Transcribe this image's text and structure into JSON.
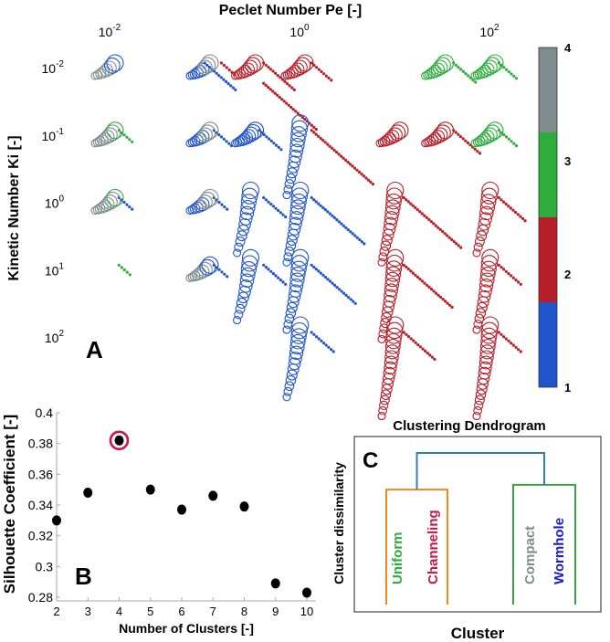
{
  "chart_data": [
    {
      "panel": "A",
      "type": "scatter",
      "title": "Peclet Number Pe [-]",
      "ylabel": "Kinetic Number Ki [-]",
      "x_scale": "log",
      "y_scale": "log",
      "y_inverted": true,
      "x_ticks": [
        {
          "value": 0.01,
          "base": "10",
          "exp": "-2"
        },
        {
          "value": 1,
          "base": "10",
          "exp": "0"
        },
        {
          "value": 100,
          "base": "10",
          "exp": "2"
        }
      ],
      "y_ticks": [
        {
          "value": 0.01,
          "base": "10",
          "exp": "-2"
        },
        {
          "value": 0.1,
          "base": "10",
          "exp": "-1"
        },
        {
          "value": 1,
          "base": "10",
          "exp": "0"
        },
        {
          "value": 10,
          "base": "10",
          "exp": "1"
        },
        {
          "value": 100,
          "base": "10",
          "exp": "2"
        }
      ],
      "colorbar": {
        "ticks": [
          "1",
          "2",
          "3",
          "4"
        ],
        "colors": [
          "#2255cc",
          "#b81e2a",
          "#2cad3c",
          "#7f8c8d"
        ]
      },
      "color_key": {
        "1": "#2255cc",
        "2": "#b81e2a",
        "3": "#2cad3c",
        "4": "#7f8c8d"
      },
      "trajectories": [
        {
          "pe": 0.01,
          "ki": 0.01,
          "cluster": 4,
          "style": "circles",
          "n": 8,
          "mix": 1
        },
        {
          "pe": 0.01,
          "ki": 0.1,
          "cluster": 4,
          "style": "circles",
          "n": 9,
          "mix": 3
        },
        {
          "pe": 0.01,
          "ki": 1,
          "cluster": 4,
          "style": "circles",
          "n": 9,
          "mix": 3
        },
        {
          "pe": 0.1,
          "ki": 0.01,
          "cluster": 1,
          "style": "circles",
          "n": 9,
          "mix": 4
        },
        {
          "pe": 0.1,
          "ki": 0.1,
          "cluster": 1,
          "style": "circles",
          "n": 9,
          "mix": 4
        },
        {
          "pe": 0.1,
          "ki": 1,
          "cluster": 1,
          "style": "circles",
          "n": 9,
          "mix": 4
        },
        {
          "pe": 0.1,
          "ki": 10,
          "cluster": 4,
          "style": "circles",
          "n": 9,
          "mix": 1
        },
        {
          "pe": 0.3,
          "ki": 0.01,
          "cluster": 2,
          "style": "circles",
          "n": 9
        },
        {
          "pe": 0.3,
          "ki": 0.1,
          "cluster": 1,
          "style": "circles",
          "n": 10
        },
        {
          "pe": 0.3,
          "ki": 1,
          "cluster": 1,
          "style": "circles",
          "n": 12
        },
        {
          "pe": 0.3,
          "ki": 10,
          "cluster": 1,
          "style": "circles",
          "n": 12
        },
        {
          "pe": 1,
          "ki": 0.01,
          "cluster": 2,
          "style": "circles",
          "n": 9
        },
        {
          "pe": 1,
          "ki": 0.1,
          "cluster": 1,
          "style": "circles",
          "n": 14
        },
        {
          "pe": 1,
          "ki": 1,
          "cluster": 1,
          "style": "circles",
          "n": 14
        },
        {
          "pe": 1,
          "ki": 10,
          "cluster": 1,
          "style": "circles",
          "n": 14
        },
        {
          "pe": 1,
          "ki": 100,
          "cluster": 1,
          "style": "circles",
          "n": 14
        },
        {
          "pe": 10,
          "ki": 0.1,
          "cluster": 2,
          "style": "circles",
          "n": 9
        },
        {
          "pe": 10,
          "ki": 1,
          "cluster": 2,
          "style": "circles",
          "n": 14
        },
        {
          "pe": 10,
          "ki": 10,
          "cluster": 2,
          "style": "circles",
          "n": 16
        },
        {
          "pe": 10,
          "ki": 100,
          "cluster": 2,
          "style": "circles",
          "n": 18
        },
        {
          "pe": 30,
          "ki": 0.01,
          "cluster": 3,
          "style": "circles",
          "n": 9
        },
        {
          "pe": 30,
          "ki": 0.1,
          "cluster": 2,
          "style": "circles",
          "n": 9
        },
        {
          "pe": 100,
          "ki": 0.01,
          "cluster": 3,
          "style": "circles",
          "n": 9
        },
        {
          "pe": 100,
          "ki": 0.1,
          "cluster": 3,
          "style": "circles",
          "n": 9
        },
        {
          "pe": 100,
          "ki": 1,
          "cluster": 2,
          "style": "circles",
          "n": 12
        },
        {
          "pe": 100,
          "ki": 10,
          "cluster": 2,
          "style": "circles",
          "n": 14
        },
        {
          "pe": 100,
          "ki": 100,
          "cluster": 2,
          "style": "circles",
          "n": 18
        },
        {
          "pe": 0.18,
          "ki": 0.01,
          "cluster": 2,
          "style": "dots",
          "n": 6
        },
        {
          "pe": 0.5,
          "ki": 0.01,
          "cluster": 2,
          "style": "dots",
          "n": 14
        },
        {
          "pe": 1.6,
          "ki": 0.01,
          "cluster": 2,
          "style": "dots",
          "n": 9
        },
        {
          "pe": 50,
          "ki": 0.01,
          "cluster": 3,
          "style": "dots",
          "n": 10
        },
        {
          "pe": 150,
          "ki": 0.01,
          "cluster": 3,
          "style": "dots",
          "n": 8
        },
        {
          "pe": 0.12,
          "ki": 0.01,
          "cluster": 1,
          "style": "dots",
          "n": 14
        },
        {
          "pe": 0.5,
          "ki": 0.02,
          "cluster": 2,
          "style": "dots",
          "n": 24
        },
        {
          "pe": 0.15,
          "ki": 0.1,
          "cluster": 1,
          "style": "dots",
          "n": 8
        },
        {
          "pe": 0.45,
          "ki": 0.1,
          "cluster": 1,
          "style": "dots",
          "n": 10
        },
        {
          "pe": 1.6,
          "ki": 0.1,
          "cluster": 2,
          "style": "dots",
          "n": 28
        },
        {
          "pe": 50,
          "ki": 0.1,
          "cluster": 2,
          "style": "dots",
          "n": 12
        },
        {
          "pe": 150,
          "ki": 0.1,
          "cluster": 3,
          "style": "dots",
          "n": 8
        },
        {
          "pe": 0.015,
          "ki": 0.1,
          "cluster": 3,
          "style": "dots",
          "n": 6
        },
        {
          "pe": 0.015,
          "ki": 1,
          "cluster": 1,
          "style": "dots",
          "n": 6
        },
        {
          "pe": 0.15,
          "ki": 1,
          "cluster": 1,
          "style": "dots",
          "n": 6
        },
        {
          "pe": 0.5,
          "ki": 1,
          "cluster": 1,
          "style": "dots",
          "n": 10
        },
        {
          "pe": 1.6,
          "ki": 1,
          "cluster": 1,
          "style": "dots",
          "n": 24
        },
        {
          "pe": 15,
          "ki": 1,
          "cluster": 2,
          "style": "dots",
          "n": 26
        },
        {
          "pe": 150,
          "ki": 1,
          "cluster": 2,
          "style": "dots",
          "n": 12
        },
        {
          "pe": 0.015,
          "ki": 10,
          "cluster": 3,
          "style": "dots",
          "n": 5
        },
        {
          "pe": 0.15,
          "ki": 10,
          "cluster": 1,
          "style": "dots",
          "n": 6
        },
        {
          "pe": 0.5,
          "ki": 10,
          "cluster": 1,
          "style": "dots",
          "n": 10
        },
        {
          "pe": 1.6,
          "ki": 10,
          "cluster": 1,
          "style": "dots",
          "n": 20
        },
        {
          "pe": 15,
          "ki": 10,
          "cluster": 2,
          "style": "dots",
          "n": 22
        },
        {
          "pe": 150,
          "ki": 10,
          "cluster": 2,
          "style": "dots",
          "n": 10
        },
        {
          "pe": 1.6,
          "ki": 100,
          "cluster": 1,
          "style": "dots",
          "n": 10
        },
        {
          "pe": 15,
          "ki": 100,
          "cluster": 2,
          "style": "dots",
          "n": 14
        },
        {
          "pe": 150,
          "ki": 100,
          "cluster": 2,
          "style": "dots",
          "n": 10
        }
      ]
    },
    {
      "panel": "B",
      "type": "scatter",
      "xlabel": "Number of Clusters [-]",
      "ylabel": "Silhouette Coefficient [-]",
      "x": [
        2,
        3,
        4,
        5,
        6,
        7,
        8,
        9,
        10
      ],
      "y": [
        0.33,
        0.348,
        0.382,
        0.35,
        0.337,
        0.346,
        0.339,
        0.289,
        0.283
      ],
      "xlim": [
        2,
        10
      ],
      "ylim": [
        0.28,
        0.4
      ],
      "x_ticks": [
        "2",
        "3",
        "4",
        "5",
        "6",
        "7",
        "8",
        "9",
        "10"
      ],
      "y_ticks": [
        "0.28",
        "0.3",
        "0.32",
        "0.34",
        "0.36",
        "0.38",
        "0.4"
      ],
      "highlight_x": 4,
      "highlight_color": "#c8184a"
    },
    {
      "panel": "C",
      "type": "dendrogram",
      "title": "Clustering Dendrogram",
      "xlabel": "Cluster",
      "ylabel": "Cluster dissimilarity",
      "leaves": [
        {
          "label": "Uniform",
          "color": "#2cad3c"
        },
        {
          "label": "Channeling",
          "color": "#c8184a"
        },
        {
          "label": "Compact",
          "color": "#7f8c8d"
        },
        {
          "label": "Wormhole",
          "color": "#1a1ad1"
        }
      ],
      "groups": [
        {
          "leaves": [
            "Uniform",
            "Channeling"
          ],
          "height": 0.72,
          "color": "#f08a1c"
        },
        {
          "leaves": [
            "Compact",
            "Wormhole"
          ],
          "height": 0.75,
          "color": "#3aa344"
        }
      ],
      "root": {
        "height": 0.95,
        "color": "#2f7fb5"
      }
    }
  ],
  "panel_labels": {
    "a": "A",
    "b": "B",
    "c": "C"
  }
}
